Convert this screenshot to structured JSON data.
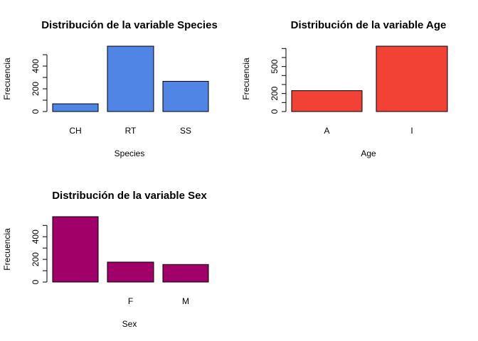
{
  "chart_data": [
    {
      "type": "bar",
      "title": "Distribución de la variable Species",
      "xlabel": "Species",
      "ylabel": "Frecuencia",
      "categories": [
        "CH",
        "RT",
        "SS"
      ],
      "values": [
        68,
        575,
        266
      ],
      "ylim": [
        0,
        575
      ],
      "yticks": [
        0,
        200,
        400
      ],
      "color": "#5185E5"
    },
    {
      "type": "bar",
      "title": "Distribución de la variable Age",
      "xlabel": "Age",
      "ylabel": "Frecuencia",
      "categories": [
        "A",
        "I"
      ],
      "values": [
        232,
        726
      ],
      "ylim": [
        0,
        726
      ],
      "yticks": [
        0,
        200,
        500
      ],
      "color": "#F24236"
    },
    {
      "type": "bar",
      "title": "Distribución de la variable Sex",
      "xlabel": "Sex",
      "ylabel": "Frecuencia",
      "categories": [
        "",
        "F",
        "M"
      ],
      "values": [
        577,
        176,
        155
      ],
      "ylim": [
        0,
        577
      ],
      "yticks": [
        0,
        200,
        400
      ],
      "color": "#A10068"
    }
  ]
}
